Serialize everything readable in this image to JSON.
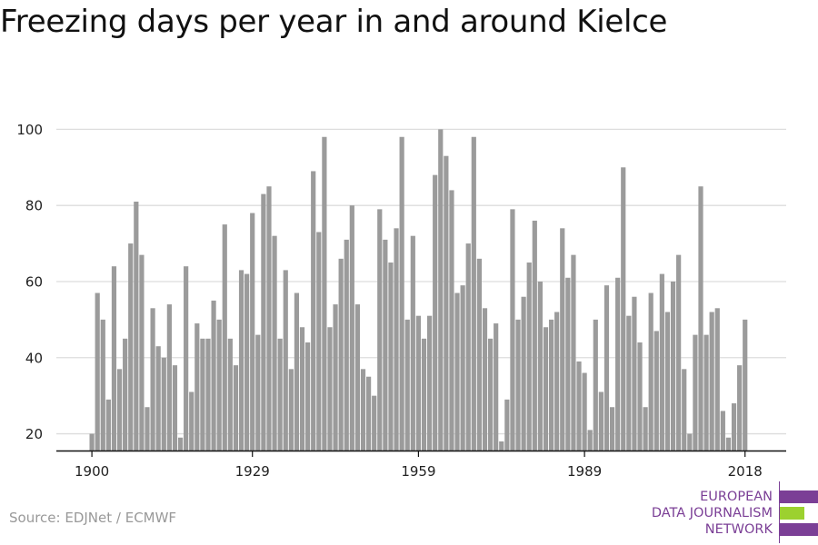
{
  "title": "Freezing days per year in and around Kielce",
  "source": "Source: EDJNet / ECMWF",
  "logo": {
    "lines": [
      "EUROPEAN",
      "DATA JOURNALISM",
      "NETWORK"
    ],
    "colors": [
      "#7b3f96",
      "#9cd12f",
      "#7b3f96"
    ]
  },
  "colors": {
    "bar": "#9b9b9b",
    "grid": "#dddddd",
    "axis": "#111111",
    "text_brand": "#7b3f96"
  },
  "chart_data": {
    "type": "bar",
    "title": "Freezing days per year in and around Kielce",
    "xlabel": "",
    "ylabel": "",
    "x_start": 1900,
    "x_end": 2018,
    "x_ticks": [
      1900,
      1929,
      1959,
      1989,
      2018
    ],
    "y_ticks": [
      20,
      40,
      60,
      80,
      100
    ],
    "ylim": [
      15.6,
      100
    ],
    "grid": true,
    "values": [
      20,
      57,
      50,
      29,
      64,
      37,
      45,
      70,
      81,
      67,
      27,
      53,
      43,
      40,
      54,
      38,
      19,
      64,
      31,
      49,
      45,
      45,
      55,
      50,
      75,
      45,
      38,
      63,
      62,
      78,
      46,
      83,
      85,
      72,
      45,
      63,
      37,
      57,
      48,
      44,
      89,
      73,
      98,
      48,
      54,
      66,
      71,
      80,
      54,
      37,
      35,
      30,
      79,
      71,
      65,
      74,
      98,
      50,
      72,
      51,
      45,
      51,
      88,
      100,
      93,
      84,
      57,
      59,
      70,
      98,
      66,
      53,
      45,
      49,
      18,
      29,
      79,
      50,
      56,
      65,
      76,
      60,
      48,
      50,
      52,
      74,
      61,
      67,
      39,
      36,
      21,
      50,
      31,
      59,
      27,
      61,
      90,
      51,
      56,
      44,
      27,
      57,
      47,
      62,
      52,
      60,
      67,
      37,
      20,
      46,
      85,
      46,
      52,
      53,
      26,
      19,
      28,
      38,
      50
    ]
  }
}
